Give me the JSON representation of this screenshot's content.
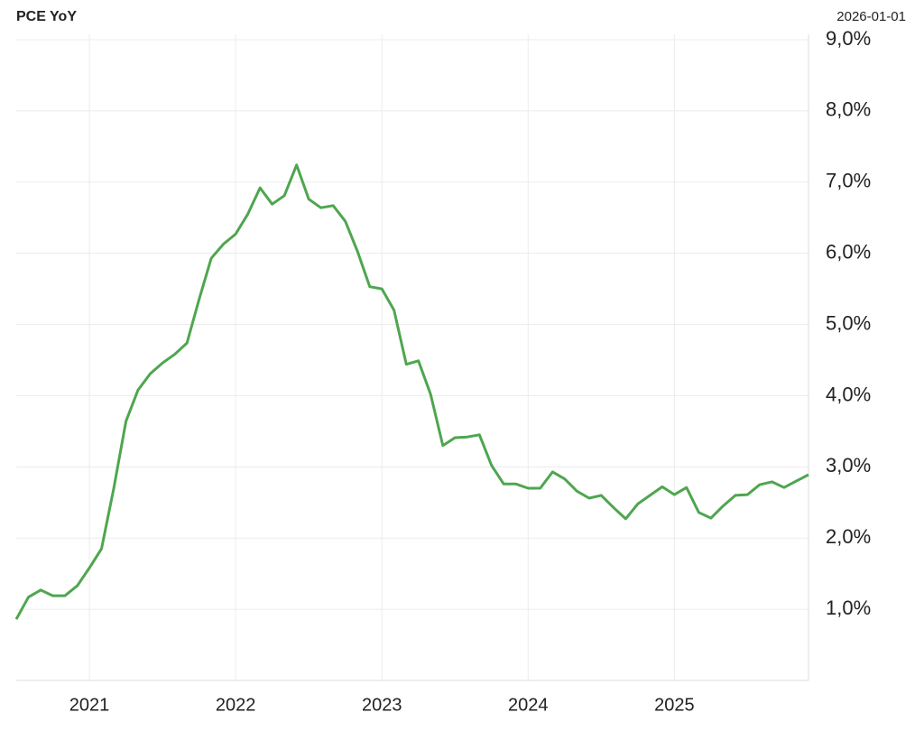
{
  "chart_data": {
    "type": "line",
    "title": "PCE YoY",
    "date_label": "2026-01-01",
    "x": [
      2020.5,
      2020.583,
      2020.667,
      2020.75,
      2020.833,
      2020.917,
      2021,
      2021.083,
      2021.167,
      2021.25,
      2021.333,
      2021.417,
      2021.5,
      2021.583,
      2021.667,
      2021.75,
      2021.833,
      2021.917,
      2022,
      2022.083,
      2022.167,
      2022.25,
      2022.333,
      2022.417,
      2022.5,
      2022.583,
      2022.667,
      2022.75,
      2022.833,
      2022.917,
      2023,
      2023.083,
      2023.167,
      2023.25,
      2023.333,
      2023.417,
      2023.5,
      2023.583,
      2023.667,
      2023.75,
      2023.833,
      2023.917,
      2024,
      2024.083,
      2024.167,
      2024.25,
      2024.333,
      2024.417,
      2024.5,
      2024.583,
      2024.667,
      2024.75,
      2024.833,
      2024.917,
      2025,
      2025.083,
      2025.167,
      2025.25,
      2025.333,
      2025.417,
      2025.5,
      2025.583,
      2025.667,
      2025.75,
      2025.833,
      2025.917
    ],
    "series": [
      {
        "name": "PCE YoY",
        "color": "#4ea64f",
        "values": [
          0.86,
          1.17,
          1.27,
          1.19,
          1.19,
          1.33,
          1.58,
          1.85,
          2.7,
          3.64,
          4.08,
          4.31,
          4.46,
          4.58,
          4.74,
          5.35,
          5.93,
          6.13,
          6.27,
          6.55,
          6.92,
          6.69,
          6.81,
          7.24,
          6.76,
          6.64,
          6.67,
          6.45,
          6.03,
          5.53,
          5.5,
          5.2,
          4.44,
          4.49,
          4.02,
          3.3,
          3.41,
          3.42,
          3.45,
          3.02,
          2.76,
          2.76,
          2.7,
          2.7,
          2.93,
          2.83,
          2.66,
          2.56,
          2.6,
          2.43,
          2.27,
          2.48,
          2.6,
          2.72,
          2.61,
          2.71,
          2.36,
          2.28,
          2.45,
          2.6,
          2.61,
          2.75,
          2.79,
          2.71,
          2.8,
          2.89
        ]
      }
    ],
    "xlim": [
      2020.5,
      2025.917
    ],
    "xticks": [
      2021,
      2022,
      2023,
      2024,
      2025
    ],
    "ylim": [
      0,
      9
    ],
    "yticks": [
      {
        "value": 1,
        "label": "1,0%"
      },
      {
        "value": 2,
        "label": "2,0%"
      },
      {
        "value": 3,
        "label": "3,0%"
      },
      {
        "value": 4,
        "label": "4,0%"
      },
      {
        "value": 5,
        "label": "5,0%"
      },
      {
        "value": 6,
        "label": "6,0%"
      },
      {
        "value": 7,
        "label": "7,0%"
      },
      {
        "value": 8,
        "label": "8,0%"
      },
      {
        "value": 9,
        "label": "9,0%"
      }
    ],
    "grid": true
  }
}
